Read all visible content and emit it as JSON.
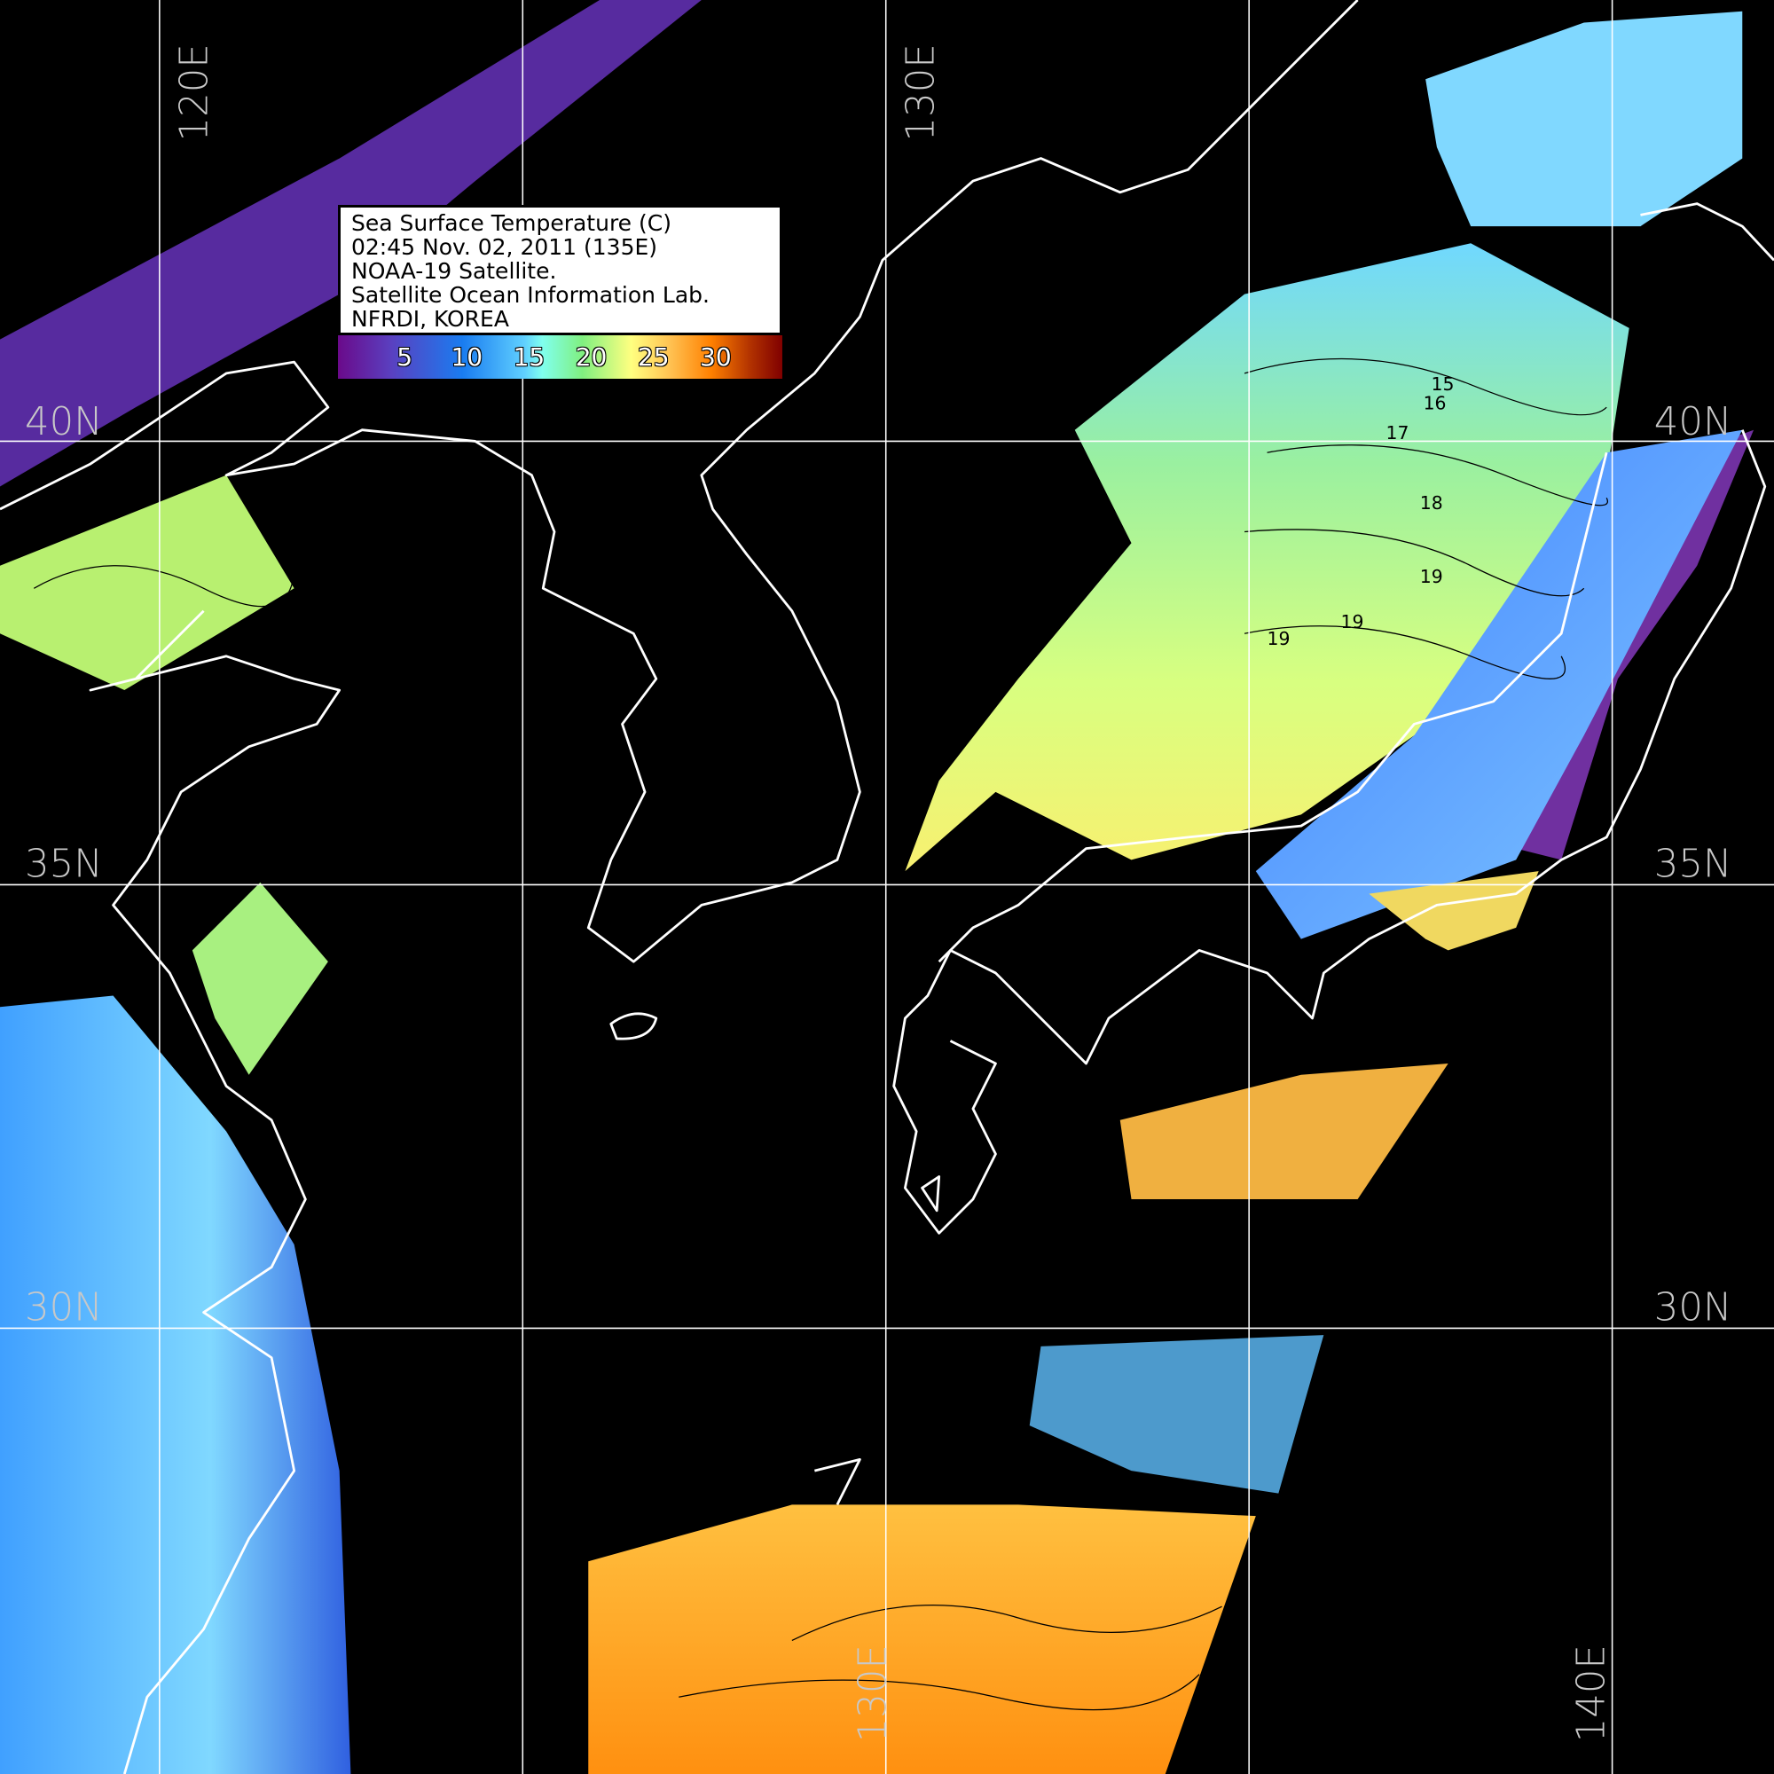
{
  "legend": {
    "lines": [
      "Sea Surface Temperature (C)",
      "02:45 Nov. 02, 2011 (135E)",
      "NOAA-19 Satellite.",
      "Satellite Ocean Information Lab.",
      "NFRDI, KOREA"
    ],
    "colorbar_ticks": [
      "5",
      "10",
      "15",
      "20",
      "25",
      "30"
    ],
    "colorbar_colors": [
      "#6a0a8a",
      "#1a7cf0",
      "#80ffee",
      "#ffff80",
      "#ff8000",
      "#800000"
    ]
  },
  "grid": {
    "lon_labels": [
      "120E",
      "130E",
      "130E",
      "140E"
    ],
    "lat_labels": [
      "40N",
      "35N",
      "30N"
    ]
  },
  "contour_labels": [
    "15",
    "16",
    "17",
    "18",
    "19",
    "19",
    "19"
  ],
  "colors": {
    "background": "#000000",
    "coastline": "#ffffff",
    "grid": "#ffffff"
  }
}
